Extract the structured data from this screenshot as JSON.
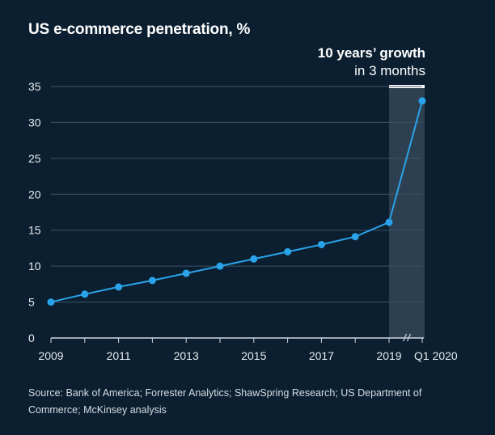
{
  "chart_data": {
    "type": "line",
    "title": "US e-commerce penetration, %",
    "x": [
      "2009",
      "2010",
      "2011",
      "2012",
      "2013",
      "2014",
      "2015",
      "2016",
      "2017",
      "2018",
      "2019",
      "Q1 2020"
    ],
    "x_tick_labels": [
      "2009",
      "2011",
      "2013",
      "2015",
      "2017",
      "2019",
      "Q1 2020"
    ],
    "y_ticks": [
      0,
      5,
      10,
      15,
      20,
      25,
      30,
      35
    ],
    "ylim": [
      0,
      35
    ],
    "series": [
      {
        "values": [
          5.0,
          6.1,
          7.1,
          8.0,
          9.0,
          10.0,
          11.0,
          12.0,
          13.0,
          14.1,
          16.1,
          33.0
        ],
        "color": "#2aa3ea"
      }
    ],
    "highlight": {
      "from": "2019",
      "to": "Q1 2020",
      "label_bold": "10 years’ growth",
      "label": "in 3 months",
      "fill": "#3a4c5c"
    },
    "axis_break_between": [
      "2019",
      "Q1 2020"
    ],
    "grid": true
  },
  "source": "Source: Bank of America; Forrester Analytics; ShawSpring Research; US Department of Commerce; McKinsey analysis"
}
